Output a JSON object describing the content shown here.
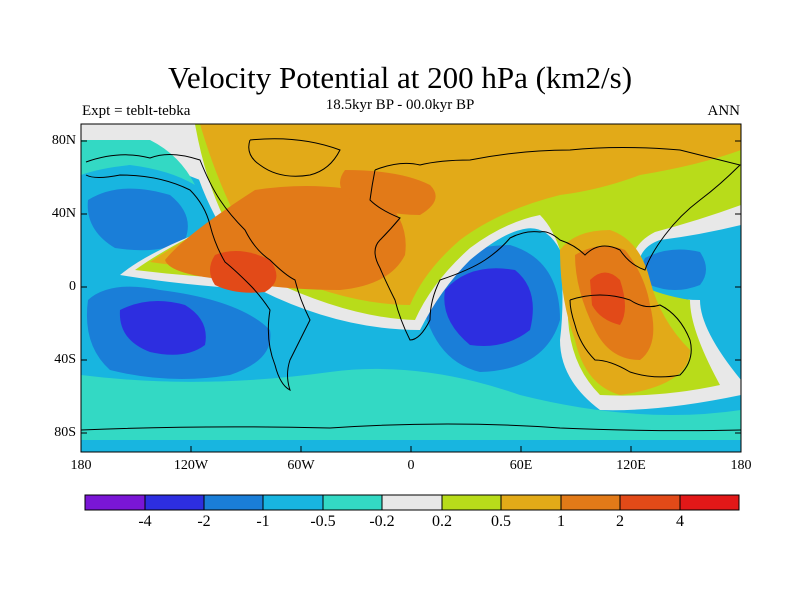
{
  "figure": {
    "title": "Velocity Potential at 200 hPa (km2/s)",
    "subtitle": "18.5kyr BP - 00.0kyr BP",
    "left_label": "Expt = teblt-tebka",
    "right_label": "ANN"
  },
  "axes": {
    "y_ticks": [
      "80N",
      "40N",
      "0",
      "40S",
      "80S"
    ],
    "x_ticks": [
      "180",
      "120W",
      "60W",
      "0",
      "60E",
      "120E",
      "180"
    ]
  },
  "colorbar": {
    "labels": [
      "-4",
      "-2",
      "-1",
      "-0.5",
      "-0.2",
      "0.2",
      "0.5",
      "1",
      "2",
      "4"
    ],
    "colors": [
      "#7a16d6",
      "#2d2ee0",
      "#1a7ed8",
      "#18b5e0",
      "#33d9c4",
      "#e8e8e8",
      "#b8dc1a",
      "#e2aa18",
      "#e27a18",
      "#e24a18",
      "#e21818"
    ]
  }
}
